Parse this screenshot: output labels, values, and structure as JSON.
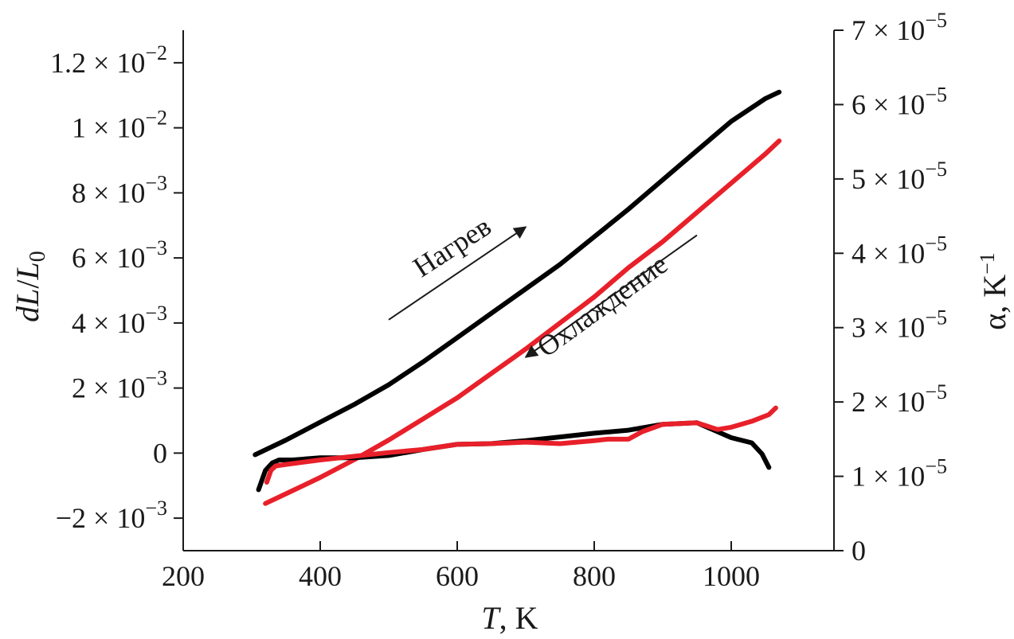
{
  "chart_data": {
    "type": "line",
    "title": "",
    "xlabel": {
      "var": "T",
      "unit": ", K"
    },
    "ylabel_left": {
      "d": "dL",
      "slash": "/",
      "base": "L",
      "sub": "0"
    },
    "ylabel_right": "α, K",
    "ylabel_right_sup": "−1",
    "xlim": [
      200,
      1150
    ],
    "ylim_left": [
      -0.003,
      0.013
    ],
    "ylim_right": [
      0,
      7e-05
    ],
    "x_ticks": [
      {
        "value": 200,
        "label": "200"
      },
      {
        "value": 400,
        "label": "400"
      },
      {
        "value": 600,
        "label": "600"
      },
      {
        "value": 800,
        "label": "800"
      },
      {
        "value": 1000,
        "label": "1000"
      }
    ],
    "y_left_ticks": [
      {
        "value": -0.002,
        "mant": "−2 × 10",
        "exp": "−3"
      },
      {
        "value": 0,
        "mant": "0",
        "exp": ""
      },
      {
        "value": 0.002,
        "mant": "2 × 10",
        "exp": "−3"
      },
      {
        "value": 0.004,
        "mant": "4 × 10",
        "exp": "−3"
      },
      {
        "value": 0.006,
        "mant": "6 × 10",
        "exp": "−3"
      },
      {
        "value": 0.008,
        "mant": "8 × 10",
        "exp": "−3"
      },
      {
        "value": 0.01,
        "mant": "1 × 10",
        "exp": "−2"
      },
      {
        "value": 0.012,
        "mant": "1.2 × 10",
        "exp": "−2"
      }
    ],
    "y_right_ticks": [
      {
        "value": 0,
        "mant": "0",
        "exp": ""
      },
      {
        "value": 1e-05,
        "mant": "1 × 10",
        "exp": "−5"
      },
      {
        "value": 2e-05,
        "mant": "2 × 10",
        "exp": "−5"
      },
      {
        "value": 3e-05,
        "mant": "3 × 10",
        "exp": "−5"
      },
      {
        "value": 4e-05,
        "mant": "4 × 10",
        "exp": "−5"
      },
      {
        "value": 5e-05,
        "mant": "5 × 10",
        "exp": "−5"
      },
      {
        "value": 6e-05,
        "mant": "6 × 10",
        "exp": "−5"
      },
      {
        "value": 7e-05,
        "mant": "7 × 10",
        "exp": "−5"
      }
    ],
    "series": [
      {
        "name": "dL/L0 heating",
        "axis": "left",
        "color": "#000000",
        "x": [
          305,
          350,
          400,
          450,
          500,
          550,
          600,
          650,
          700,
          750,
          800,
          850,
          900,
          950,
          1000,
          1050,
          1070
        ],
        "y": [
          -5e-05,
          0.0004,
          0.00095,
          0.0015,
          0.0021,
          0.0028,
          0.00355,
          0.0043,
          0.00505,
          0.0058,
          0.00665,
          0.0075,
          0.0084,
          0.0093,
          0.0102,
          0.0109,
          0.0111
        ]
      },
      {
        "name": "dL/L0 cooling",
        "axis": "left",
        "color": "#e8202a",
        "x": [
          320,
          350,
          400,
          450,
          500,
          550,
          600,
          650,
          700,
          750,
          800,
          850,
          900,
          950,
          1000,
          1050,
          1070
        ],
        "y": [
          -0.00155,
          -0.00125,
          -0.00075,
          -0.0002,
          0.0004,
          0.00105,
          0.0017,
          0.00245,
          0.0032,
          0.004,
          0.0048,
          0.0057,
          0.0065,
          0.0074,
          0.0083,
          0.0092,
          0.0096
        ]
      },
      {
        "name": "alpha heating",
        "axis": "right",
        "color": "#000000",
        "x": [
          310,
          320,
          330,
          340,
          360,
          400,
          450,
          500,
          550,
          600,
          650,
          700,
          750,
          800,
          850,
          900,
          950,
          1000,
          1030,
          1045,
          1055
        ],
        "y": [
          8.2e-06,
          1.08e-05,
          1.18e-05,
          1.22e-05,
          1.22e-05,
          1.25e-05,
          1.25e-05,
          1.28e-05,
          1.36e-05,
          1.43e-05,
          1.44e-05,
          1.48e-05,
          1.53e-05,
          1.58e-05,
          1.62e-05,
          1.7e-05,
          1.72e-05,
          1.52e-05,
          1.45e-05,
          1.3e-05,
          1.12e-05
        ]
      },
      {
        "name": "alpha cooling",
        "axis": "right",
        "color": "#e8202a",
        "x": [
          322,
          328,
          335,
          350,
          400,
          450,
          500,
          550,
          600,
          650,
          700,
          750,
          800,
          820,
          850,
          870,
          900,
          950,
          980,
          1000,
          1030,
          1055,
          1065
        ],
        "y": [
          9.2e-06,
          1.08e-05,
          1.14e-05,
          1.16e-05,
          1.22e-05,
          1.27e-05,
          1.32e-05,
          1.36e-05,
          1.43e-05,
          1.44e-05,
          1.46e-05,
          1.44e-05,
          1.48e-05,
          1.5e-05,
          1.5e-05,
          1.6e-05,
          1.7e-05,
          1.72e-05,
          1.63e-05,
          1.66e-05,
          1.74e-05,
          1.83e-05,
          1.92e-05
        ]
      }
    ],
    "annotations": [
      {
        "id": "heating",
        "text": "Нагрев",
        "arrow_from": [
          500,
          0.0041
        ],
        "arrow_to": [
          700,
          0.00695
        ],
        "text_at": [
          600,
          0.0061
        ],
        "rotation_deg": -33
      },
      {
        "id": "cooling",
        "text": "Охлаждение",
        "arrow_from": [
          950,
          0.0067
        ],
        "arrow_to": [
          700,
          0.00295
        ],
        "text_at": [
          820,
          0.0043
        ],
        "rotation_deg": -36
      }
    ]
  }
}
